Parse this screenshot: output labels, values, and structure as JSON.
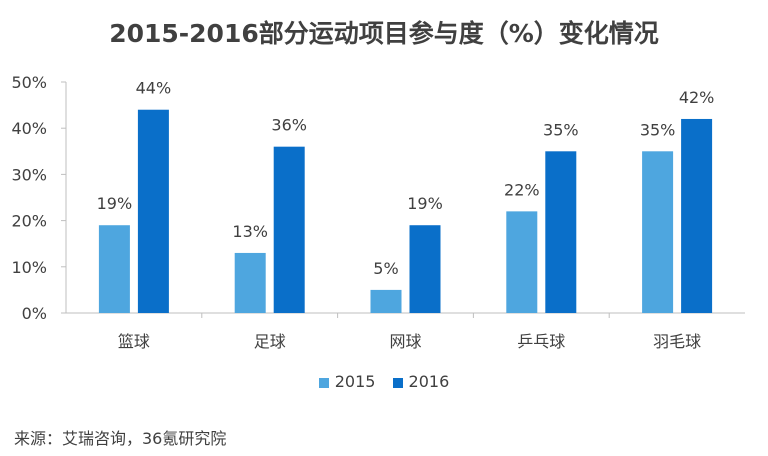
{
  "chart_data": {
    "type": "bar",
    "title": "2015-2016部分运动项目参与度（%）变化情况",
    "categories": [
      "篮球",
      "足球",
      "网球",
      "乒乓球",
      "羽毛球"
    ],
    "series": [
      {
        "name": "2015",
        "values": [
          19,
          13,
          5,
          22,
          35
        ],
        "color": "#4ea6df"
      },
      {
        "name": "2016",
        "values": [
          44,
          36,
          19,
          35,
          42
        ],
        "color": "#0a6fc9"
      }
    ],
    "ylim": [
      0,
      50
    ],
    "yticks": [
      0,
      10,
      20,
      30,
      40,
      50
    ],
    "value_suffix": "%",
    "grid": false,
    "legend_position": "bottom"
  },
  "source": "来源：艾瑞咨询，36氪研究院"
}
